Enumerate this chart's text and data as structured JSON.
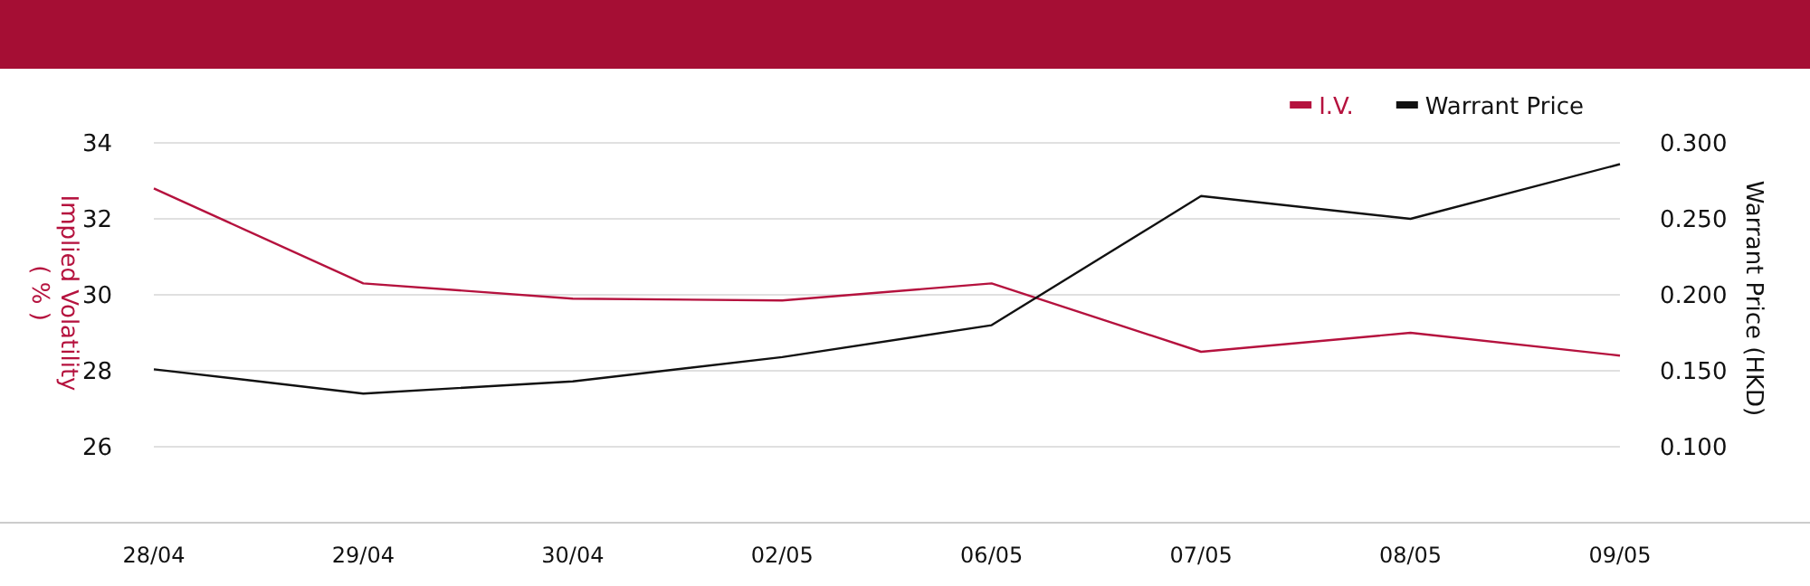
{
  "chart_data": {
    "type": "line",
    "categories": [
      "28/04",
      "29/04",
      "30/04",
      "02/05",
      "06/05",
      "07/05",
      "08/05",
      "09/05"
    ],
    "ylabel": "Implied Volatility\n( % )",
    "y2label": "Warrant Price (HKD)",
    "ylim": [
      24,
      34
    ],
    "yticks": [
      {
        "value": 26,
        "label": "26"
      },
      {
        "value": 28,
        "label": "28"
      },
      {
        "value": 30,
        "label": "30"
      },
      {
        "value": 32,
        "label": "32"
      },
      {
        "value": 34,
        "label": "34"
      }
    ],
    "y2lim": [
      0.05,
      0.3
    ],
    "y2ticks": [
      {
        "value": 0.1,
        "label": "0.100"
      },
      {
        "value": 0.15,
        "label": "0.150"
      },
      {
        "value": 0.2,
        "label": "0.200"
      },
      {
        "value": 0.25,
        "label": "0.250"
      },
      {
        "value": 0.3,
        "label": "0.300"
      }
    ],
    "series": [
      {
        "name": "I.V.",
        "color": "#b5123e",
        "values": [
          32.8,
          30.3,
          29.9,
          29.85,
          30.3,
          28.5,
          29.0,
          28.4
        ]
      },
      {
        "name": "Warrant Price",
        "color": "#111111",
        "axis": "y2",
        "values": [
          0.151,
          0.135,
          0.143,
          0.159,
          0.18,
          0.265,
          0.25,
          0.286
        ]
      }
    ],
    "grid": "y",
    "legend": "top right",
    "marker": "none",
    "line_style": "solid"
  }
}
